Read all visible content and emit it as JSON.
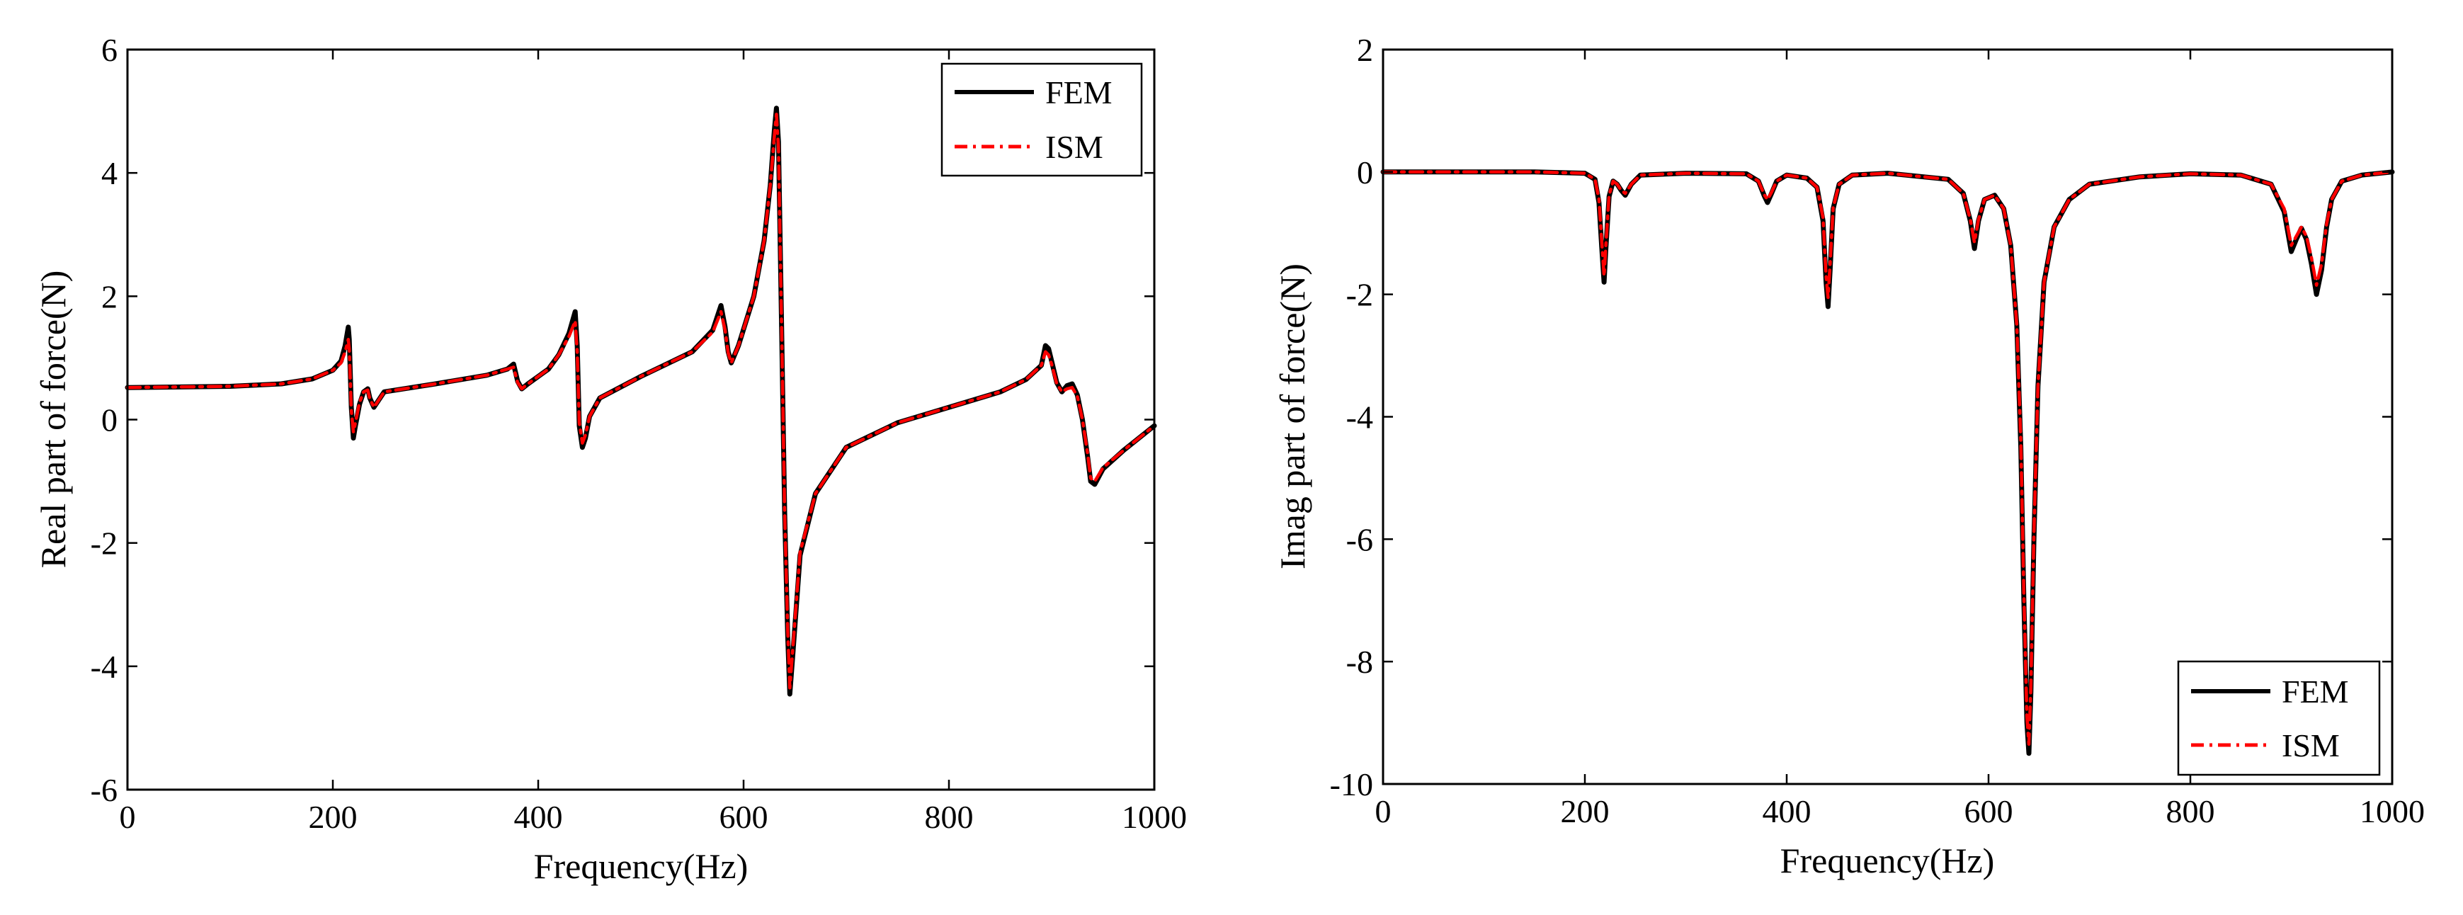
{
  "colors": {
    "fem": "#000000",
    "ism": "#ff0000",
    "axis": "#000000",
    "background": "#ffffff"
  },
  "chart_data": [
    {
      "type": "line",
      "xlabel": "Frequency(Hz)",
      "ylabel": "Real part of force(N)",
      "xlim": [
        0,
        1000
      ],
      "ylim": [
        -6,
        6
      ],
      "xticks": [
        0,
        200,
        400,
        600,
        800,
        1000
      ],
      "xtick_labels": [
        "0",
        "200",
        "400",
        "600",
        "800",
        "1000"
      ],
      "yticks": [
        -6,
        -4,
        -2,
        0,
        2,
        4,
        6
      ],
      "ytick_labels": [
        "-6",
        "-4",
        "-2",
        "0",
        "2",
        "4",
        "6"
      ],
      "grid": false,
      "legend_position": "top-right",
      "series": [
        {
          "name": "FEM",
          "style": "solid",
          "x": [
            0,
            100,
            150,
            180,
            200,
            208,
            212,
            215,
            216,
            218,
            220,
            222,
            226,
            230,
            234,
            236,
            240,
            250,
            300,
            350,
            370,
            376,
            380,
            384,
            390,
            410,
            420,
            430,
            436,
            438,
            440,
            443,
            446,
            450,
            460,
            500,
            550,
            570,
            578,
            582,
            585,
            588,
            595,
            610,
            620,
            626,
            630,
            632,
            634,
            637,
            640,
            643,
            645,
            648,
            655,
            670,
            700,
            750,
            800,
            850,
            875,
            890,
            894,
            897,
            900,
            905,
            910,
            915,
            920,
            925,
            930,
            935,
            938,
            942,
            950,
            970,
            1000
          ],
          "y": [
            0.52,
            0.54,
            0.58,
            0.66,
            0.8,
            0.95,
            1.2,
            1.5,
            1.3,
            0.2,
            -0.3,
            -0.1,
            0.25,
            0.45,
            0.5,
            0.35,
            0.2,
            0.45,
            0.58,
            0.72,
            0.82,
            0.9,
            0.62,
            0.5,
            0.58,
            0.82,
            1.05,
            1.4,
            1.75,
            1.2,
            -0.1,
            -0.45,
            -0.3,
            0.05,
            0.35,
            0.7,
            1.1,
            1.45,
            1.85,
            1.5,
            1.1,
            0.92,
            1.2,
            2.0,
            2.9,
            3.8,
            4.7,
            5.05,
            4.5,
            1.5,
            -1.5,
            -3.5,
            -4.45,
            -3.8,
            -2.2,
            -1.2,
            -0.45,
            -0.05,
            0.2,
            0.45,
            0.65,
            0.88,
            1.2,
            1.15,
            0.95,
            0.6,
            0.45,
            0.55,
            0.58,
            0.4,
            0.0,
            -0.6,
            -1.0,
            -1.05,
            -0.8,
            -0.5,
            -0.1
          ]
        },
        {
          "name": "ISM",
          "style": "dash-dot",
          "x": [
            0,
            100,
            150,
            180,
            200,
            208,
            212,
            215,
            216,
            218,
            220,
            222,
            226,
            230,
            234,
            236,
            240,
            250,
            300,
            350,
            370,
            376,
            380,
            384,
            390,
            410,
            420,
            430,
            436,
            438,
            440,
            443,
            446,
            450,
            460,
            500,
            550,
            570,
            578,
            582,
            585,
            588,
            595,
            610,
            620,
            626,
            630,
            632,
            634,
            637,
            640,
            643,
            645,
            648,
            655,
            670,
            700,
            750,
            800,
            850,
            875,
            890,
            894,
            897,
            900,
            905,
            910,
            915,
            920,
            925,
            930,
            935,
            938,
            942,
            950,
            970,
            1000
          ],
          "y": [
            0.52,
            0.54,
            0.58,
            0.66,
            0.8,
            0.92,
            1.1,
            1.3,
            1.15,
            0.15,
            -0.2,
            -0.05,
            0.28,
            0.45,
            0.48,
            0.34,
            0.2,
            0.45,
            0.58,
            0.72,
            0.82,
            0.85,
            0.6,
            0.5,
            0.58,
            0.82,
            1.05,
            1.35,
            1.6,
            1.1,
            -0.05,
            -0.38,
            -0.25,
            0.05,
            0.35,
            0.7,
            1.1,
            1.42,
            1.75,
            1.45,
            1.08,
            0.92,
            1.2,
            2.0,
            2.9,
            3.8,
            4.6,
            4.95,
            4.4,
            1.5,
            -1.5,
            -3.4,
            -4.35,
            -3.7,
            -2.15,
            -1.2,
            -0.45,
            -0.05,
            0.2,
            0.45,
            0.65,
            0.88,
            1.1,
            1.05,
            0.9,
            0.58,
            0.45,
            0.5,
            0.52,
            0.38,
            0.0,
            -0.55,
            -0.95,
            -1.0,
            -0.78,
            -0.5,
            -0.1
          ]
        }
      ]
    },
    {
      "type": "line",
      "xlabel": "Frequency(Hz)",
      "ylabel": "Imag part of force(N)",
      "xlim": [
        0,
        1000
      ],
      "ylim": [
        -10,
        2
      ],
      "xticks": [
        0,
        200,
        400,
        600,
        800,
        1000
      ],
      "xtick_labels": [
        "0",
        "200",
        "400",
        "600",
        "800",
        "1000"
      ],
      "yticks": [
        -10,
        -8,
        -6,
        -4,
        -2,
        0,
        2
      ],
      "ytick_labels": [
        "-10",
        "-8",
        "-6",
        "-4",
        "-2",
        "0",
        "2"
      ],
      "grid": false,
      "legend_position": "bottom-right",
      "series": [
        {
          "name": "FEM",
          "style": "solid",
          "x": [
            0,
            150,
            200,
            210,
            214,
            217,
            219,
            221,
            224,
            228,
            232,
            236,
            240,
            246,
            255,
            300,
            360,
            372,
            378,
            381,
            385,
            390,
            400,
            420,
            430,
            436,
            439,
            441,
            443,
            446,
            452,
            465,
            500,
            560,
            575,
            582,
            586,
            590,
            596,
            606,
            615,
            622,
            628,
            632,
            635,
            638,
            640,
            642,
            645,
            649,
            655,
            665,
            680,
            700,
            750,
            800,
            850,
            880,
            893,
            900,
            905,
            910,
            915,
            920,
            925,
            930,
            935,
            940,
            950,
            970,
            1000
          ],
          "y": [
            0,
            0,
            -0.02,
            -0.12,
            -0.5,
            -1.3,
            -1.8,
            -1.2,
            -0.4,
            -0.15,
            -0.2,
            -0.3,
            -0.38,
            -0.2,
            -0.05,
            -0.02,
            -0.03,
            -0.15,
            -0.4,
            -0.5,
            -0.35,
            -0.15,
            -0.05,
            -0.1,
            -0.25,
            -0.8,
            -1.8,
            -2.2,
            -1.6,
            -0.6,
            -0.2,
            -0.05,
            -0.02,
            -0.12,
            -0.35,
            -0.8,
            -1.25,
            -0.8,
            -0.45,
            -0.38,
            -0.6,
            -1.2,
            -2.5,
            -4.5,
            -7.0,
            -9.0,
            -9.5,
            -8.5,
            -6.0,
            -3.5,
            -1.8,
            -0.9,
            -0.45,
            -0.2,
            -0.08,
            -0.03,
            -0.05,
            -0.2,
            -0.65,
            -1.3,
            -1.1,
            -0.92,
            -1.1,
            -1.5,
            -2.0,
            -1.6,
            -0.9,
            -0.45,
            -0.15,
            -0.05,
            0
          ]
        },
        {
          "name": "ISM",
          "style": "dash-dot",
          "x": [
            0,
            150,
            200,
            210,
            214,
            217,
            219,
            221,
            224,
            228,
            232,
            236,
            240,
            246,
            255,
            300,
            360,
            372,
            378,
            381,
            385,
            390,
            400,
            420,
            430,
            436,
            439,
            441,
            443,
            446,
            452,
            465,
            500,
            560,
            575,
            582,
            586,
            590,
            596,
            606,
            615,
            622,
            628,
            632,
            635,
            638,
            640,
            642,
            645,
            649,
            655,
            665,
            680,
            700,
            750,
            800,
            850,
            880,
            893,
            900,
            905,
            910,
            915,
            920,
            925,
            930,
            935,
            940,
            950,
            970,
            1000
          ],
          "y": [
            0,
            0,
            -0.02,
            -0.12,
            -0.45,
            -1.2,
            -1.7,
            -1.15,
            -0.38,
            -0.15,
            -0.2,
            -0.3,
            -0.35,
            -0.2,
            -0.05,
            -0.02,
            -0.03,
            -0.15,
            -0.38,
            -0.45,
            -0.33,
            -0.15,
            -0.05,
            -0.1,
            -0.25,
            -0.75,
            -1.7,
            -2.05,
            -1.5,
            -0.58,
            -0.2,
            -0.05,
            -0.02,
            -0.12,
            -0.35,
            -0.78,
            -1.15,
            -0.78,
            -0.45,
            -0.38,
            -0.6,
            -1.2,
            -2.5,
            -4.4,
            -6.9,
            -8.9,
            -9.35,
            -8.4,
            -5.9,
            -3.5,
            -1.8,
            -0.9,
            -0.45,
            -0.2,
            -0.08,
            -0.03,
            -0.05,
            -0.2,
            -0.6,
            -1.2,
            -1.05,
            -0.9,
            -1.05,
            -1.4,
            -1.85,
            -1.5,
            -0.85,
            -0.45,
            -0.15,
            -0.05,
            0
          ]
        }
      ]
    }
  ]
}
